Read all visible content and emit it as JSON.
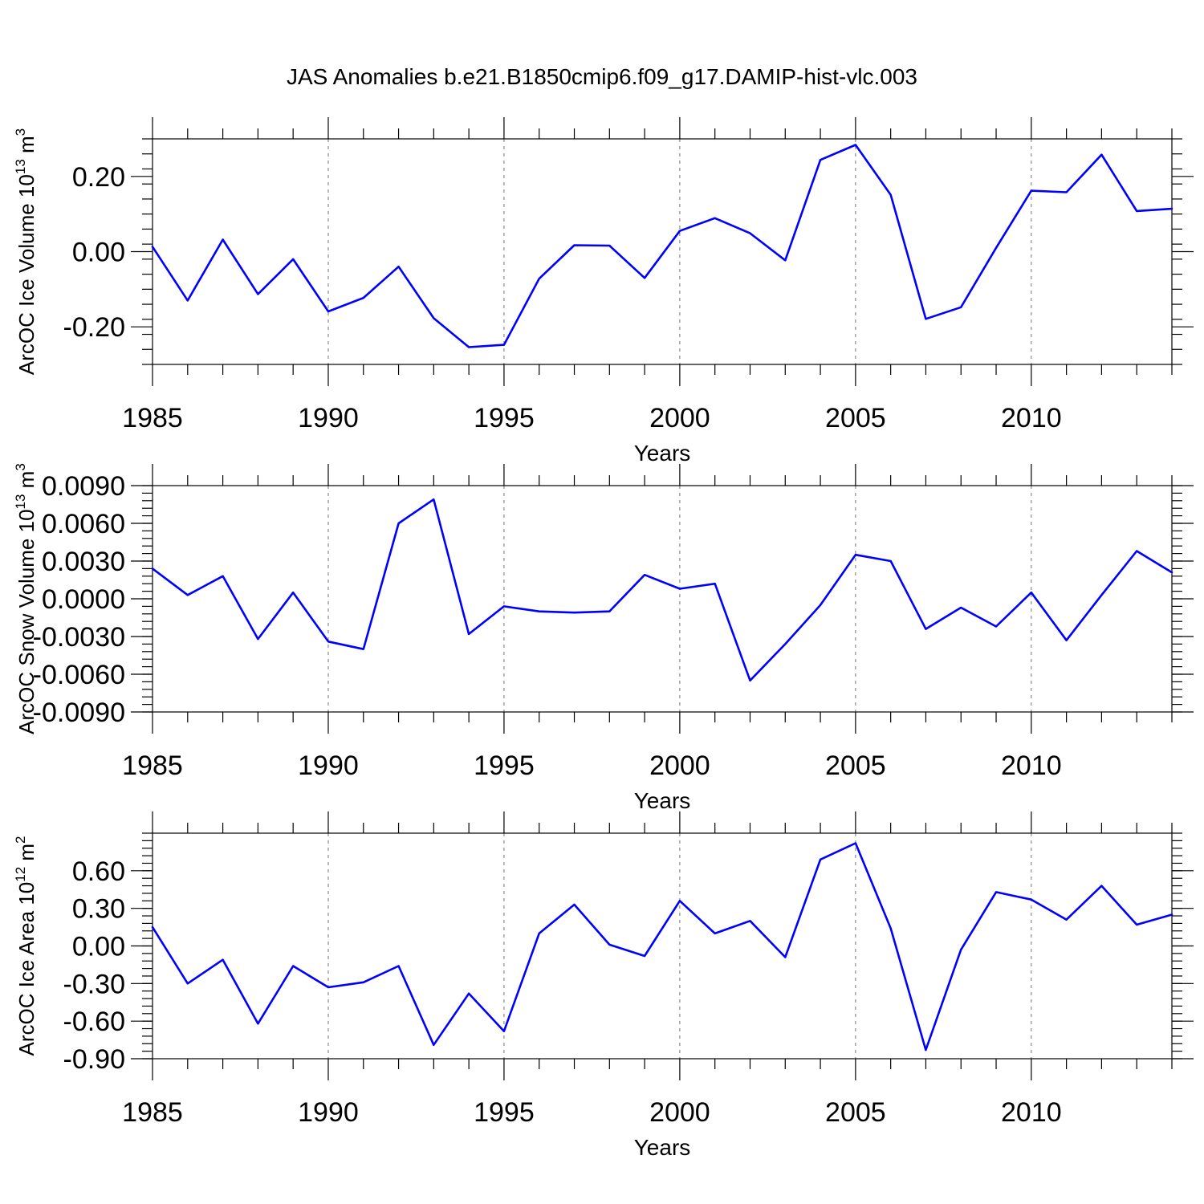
{
  "title": "JAS Anomalies b.e21.B1850cmip6.f09_g17.DAMIP-hist-vlc.003",
  "colors": {
    "series": "#0000ff",
    "axes": "#000000",
    "background": "#ffffff"
  },
  "chart_data": [
    {
      "type": "line",
      "ylabel": "ArcOC Ice Volume 10",
      "ylabel_sup": "13",
      "ylabel_unit": " m",
      "ylabel_unit_sup": "3",
      "xlabel": "Years",
      "xlim": [
        1985,
        2014
      ],
      "ylim": [
        -0.3,
        0.3
      ],
      "x_ticks": [
        1985,
        1990,
        1995,
        2000,
        2005,
        2010
      ],
      "x_tick_labels": [
        "1985",
        "1990",
        "1995",
        "2000",
        "2005",
        "2010"
      ],
      "y_ticks": [
        0.2,
        0.0,
        -0.2
      ],
      "y_tick_labels": [
        "0.20",
        "0.00",
        "-0.20"
      ],
      "grid": "vertical dashed at major x ticks",
      "series": [
        {
          "x": [
            1985,
            1986,
            1987,
            1988,
            1989,
            1990,
            1991,
            1992,
            1993,
            1994,
            1995,
            1996,
            1997,
            1998,
            1999,
            2000,
            2001,
            2002,
            2003,
            2004,
            2005,
            2006,
            2007,
            2008,
            2009,
            2010,
            2011,
            2012,
            2013,
            2014
          ],
          "values": [
            0.013,
            -0.13,
            0.032,
            -0.113,
            -0.02,
            -0.159,
            -0.123,
            -0.04,
            -0.177,
            -0.254,
            -0.248,
            -0.072,
            0.017,
            0.016,
            -0.07,
            0.055,
            0.089,
            0.049,
            -0.023,
            0.244,
            0.284,
            0.151,
            -0.179,
            -0.148,
            0.01,
            0.162,
            0.158,
            0.258,
            0.108,
            0.114
          ]
        }
      ]
    },
    {
      "type": "line",
      "ylabel": "ArcOC Snow Volume 10",
      "ylabel_sup": "13",
      "ylabel_unit": " m",
      "ylabel_unit_sup": "3",
      "xlabel": "Years",
      "xlim": [
        1985,
        2014
      ],
      "ylim": [
        -0.009,
        0.009
      ],
      "x_ticks": [
        1985,
        1990,
        1995,
        2000,
        2005,
        2010
      ],
      "x_tick_labels": [
        "1985",
        "1990",
        "1995",
        "2000",
        "2005",
        "2010"
      ],
      "y_ticks": [
        0.009,
        0.006,
        0.003,
        0.0,
        -0.003,
        -0.006,
        -0.009
      ],
      "y_tick_labels": [
        "0.0090",
        "0.0060",
        "0.0030",
        "0.0000",
        "-0.0030",
        "-0.0060",
        "-0.0090"
      ],
      "grid": "vertical dashed at major x ticks",
      "series": [
        {
          "x": [
            1985,
            1986,
            1987,
            1988,
            1989,
            1990,
            1991,
            1992,
            1993,
            1994,
            1995,
            1996,
            1997,
            1998,
            1999,
            2000,
            2001,
            2002,
            2003,
            2004,
            2005,
            2006,
            2007,
            2008,
            2009,
            2010,
            2011,
            2012,
            2013,
            2014
          ],
          "values": [
            0.0024,
            0.0003,
            0.0018,
            -0.0032,
            0.0005,
            -0.0034,
            -0.004,
            0.006,
            0.0079,
            -0.0028,
            -0.0006,
            -0.001,
            -0.0011,
            -0.001,
            0.0019,
            0.0008,
            0.0012,
            -0.0065,
            -0.0036,
            -0.0005,
            0.0035,
            0.003,
            -0.0024,
            -0.0007,
            -0.0022,
            0.0005,
            -0.0033,
            0.0003,
            0.0038,
            0.0021
          ]
        }
      ]
    },
    {
      "type": "line",
      "ylabel": "ArcOC Ice Area 10",
      "ylabel_sup": "12",
      "ylabel_unit": " m",
      "ylabel_unit_sup": "2",
      "xlabel": "Years",
      "xlim": [
        1985,
        2014
      ],
      "ylim": [
        -0.9,
        0.9
      ],
      "x_ticks": [
        1985,
        1990,
        1995,
        2000,
        2005,
        2010
      ],
      "x_tick_labels": [
        "1985",
        "1990",
        "1995",
        "2000",
        "2005",
        "2010"
      ],
      "y_ticks": [
        0.6,
        0.3,
        0.0,
        -0.3,
        -0.6,
        -0.9
      ],
      "y_tick_labels": [
        "0.60",
        "0.30",
        "0.00",
        "-0.30",
        "-0.60",
        "-0.90"
      ],
      "grid": "vertical dashed at major x ticks",
      "series": [
        {
          "x": [
            1985,
            1986,
            1987,
            1988,
            1989,
            1990,
            1991,
            1992,
            1993,
            1994,
            1995,
            1996,
            1997,
            1998,
            1999,
            2000,
            2001,
            2002,
            2003,
            2004,
            2005,
            2006,
            2007,
            2008,
            2009,
            2010,
            2011,
            2012,
            2013,
            2014
          ],
          "values": [
            0.15,
            -0.3,
            -0.11,
            -0.62,
            -0.16,
            -0.33,
            -0.29,
            -0.16,
            -0.79,
            -0.38,
            -0.68,
            0.1,
            0.33,
            0.01,
            -0.08,
            0.36,
            0.1,
            0.2,
            -0.09,
            0.69,
            0.82,
            0.14,
            -0.83,
            -0.03,
            0.43,
            0.37,
            0.21,
            0.48,
            0.17,
            0.25
          ]
        }
      ]
    }
  ]
}
